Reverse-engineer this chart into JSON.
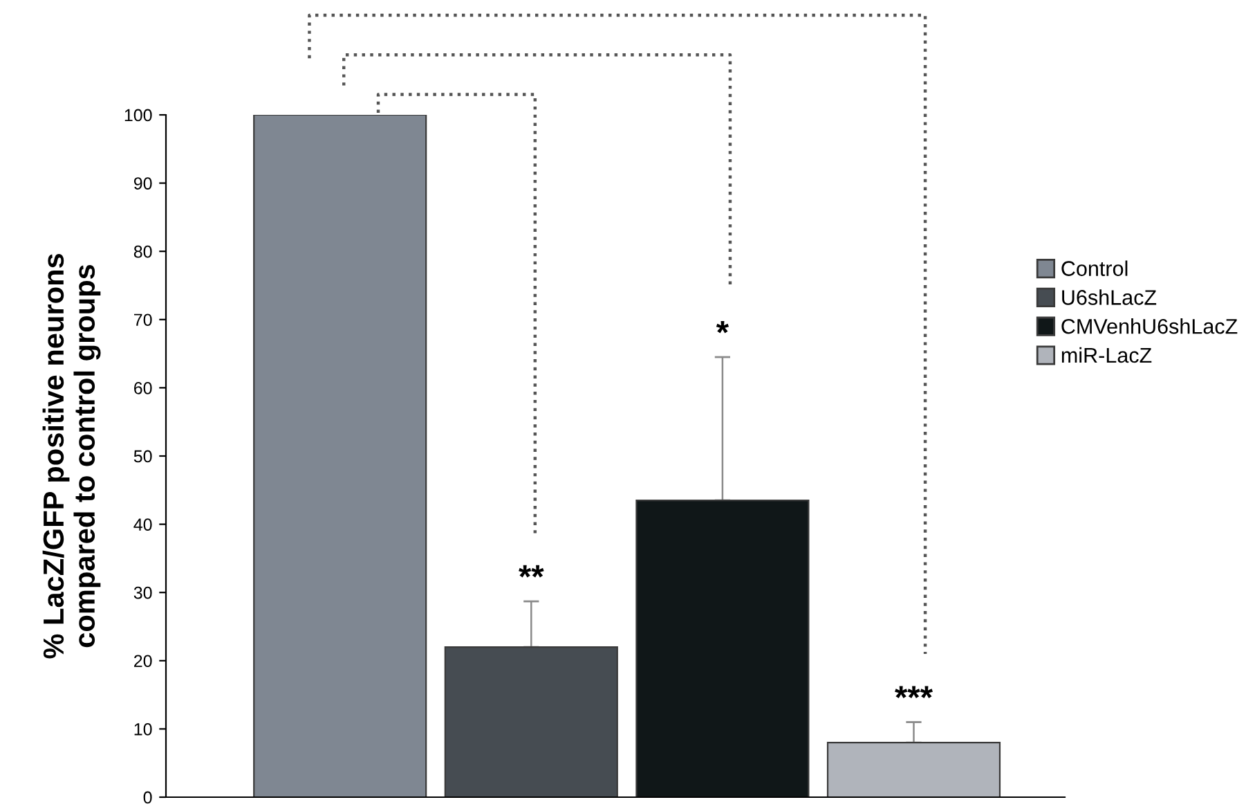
{
  "chart_data": {
    "type": "bar",
    "ylabel": "% LacZ/GFP positive neurons\ncompared to control groups",
    "categories": [
      null,
      null,
      null,
      null
    ],
    "series": [
      {
        "name": "Control",
        "color": "#7f8792",
        "values": [
          100,
          null,
          null,
          null
        ],
        "errors": [
          null,
          null,
          null,
          null
        ]
      },
      {
        "name": "U6shLacZ",
        "color": "#464c52",
        "values": [
          null,
          22,
          null,
          null
        ],
        "errors": [
          null,
          [
            22,
            28.7
          ],
          null,
          null
        ]
      },
      {
        "name": "CMVenhU6shLacZ",
        "color": "#101718",
        "values": [
          null,
          null,
          43.5,
          null
        ],
        "errors": [
          null,
          null,
          [
            43.5,
            64.5
          ],
          null
        ]
      },
      {
        "name": "miR-LacZ",
        "color": "#b0b4bb",
        "values": [
          null,
          null,
          null,
          8
        ],
        "errors": [
          null,
          null,
          null,
          [
            8,
            11
          ]
        ]
      }
    ],
    "annotations": [
      "**",
      "*",
      "***"
    ],
    "ylim": [
      0,
      100
    ],
    "yticks": [
      0,
      10,
      20,
      30,
      40,
      50,
      60,
      70,
      80,
      90,
      100
    ],
    "legend": "right",
    "grid": false
  }
}
